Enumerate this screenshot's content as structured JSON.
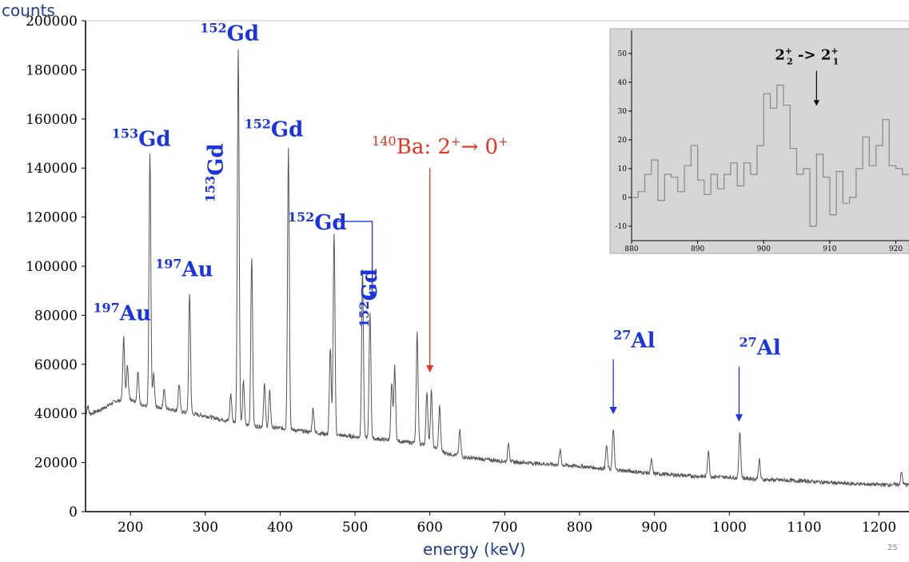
{
  "chart_data": [
    {
      "type": "line",
      "title": "",
      "ylabel": "counts",
      "xlabel": "energy (keV)",
      "xlim": [
        140,
        1240
      ],
      "ylim": [
        0,
        200000
      ],
      "x_ticks": [
        200,
        300,
        400,
        500,
        600,
        700,
        800,
        900,
        1000,
        1100,
        1200
      ],
      "y_ticks": [
        0,
        20000,
        40000,
        60000,
        80000,
        100000,
        120000,
        140000,
        160000,
        180000,
        200000
      ],
      "grid": false,
      "colors": {
        "spectrum": "#555555",
        "label_blue": "#1a35e0",
        "label_red": "#e8321e"
      },
      "continuum": [
        [
          140,
          39000
        ],
        [
          160,
          41500
        ],
        [
          180,
          45000
        ],
        [
          200,
          46000
        ],
        [
          220,
          43000
        ],
        [
          250,
          42000
        ],
        [
          280,
          40000
        ],
        [
          300,
          39000
        ],
        [
          330,
          37000
        ],
        [
          360,
          35000
        ],
        [
          400,
          34000
        ],
        [
          450,
          32000
        ],
        [
          500,
          30500
        ],
        [
          550,
          29000
        ],
        [
          580,
          28000
        ],
        [
          600,
          27000
        ],
        [
          620,
          24000
        ],
        [
          650,
          22000
        ],
        [
          700,
          20500
        ],
        [
          750,
          19500
        ],
        [
          800,
          18500
        ],
        [
          850,
          17000
        ],
        [
          900,
          15500
        ],
        [
          950,
          14500
        ],
        [
          1000,
          14000
        ],
        [
          1050,
          13000
        ],
        [
          1100,
          12500
        ],
        [
          1150,
          11500
        ],
        [
          1200,
          11000
        ],
        [
          1240,
          11000
        ]
      ],
      "peaks": [
        {
          "x": 143,
          "y": 43000
        },
        {
          "x": 191,
          "y": 71000
        },
        {
          "x": 196,
          "y": 60000
        },
        {
          "x": 210,
          "y": 57000
        },
        {
          "x": 226,
          "y": 146000
        },
        {
          "x": 231,
          "y": 56000
        },
        {
          "x": 245,
          "y": 50000
        },
        {
          "x": 265,
          "y": 52000
        },
        {
          "x": 279,
          "y": 89000
        },
        {
          "x": 334,
          "y": 48000
        },
        {
          "x": 344,
          "y": 188000
        },
        {
          "x": 351,
          "y": 53000
        },
        {
          "x": 362,
          "y": 104000
        },
        {
          "x": 379,
          "y": 52000
        },
        {
          "x": 386,
          "y": 49000
        },
        {
          "x": 411,
          "y": 148000
        },
        {
          "x": 444,
          "y": 42000
        },
        {
          "x": 467,
          "y": 67000
        },
        {
          "x": 472,
          "y": 114000
        },
        {
          "x": 510,
          "y": 99000
        },
        {
          "x": 520,
          "y": 81000
        },
        {
          "x": 549,
          "y": 52000
        },
        {
          "x": 553,
          "y": 59000
        },
        {
          "x": 583,
          "y": 73000
        },
        {
          "x": 596,
          "y": 49000
        },
        {
          "x": 602,
          "y": 49000
        },
        {
          "x": 613,
          "y": 43000
        },
        {
          "x": 640,
          "y": 33000
        },
        {
          "x": 705,
          "y": 28000
        },
        {
          "x": 774,
          "y": 25000
        },
        {
          "x": 836,
          "y": 27000
        },
        {
          "x": 845,
          "y": 34000
        },
        {
          "x": 896,
          "y": 21000
        },
        {
          "x": 972,
          "y": 25000
        },
        {
          "x": 1014,
          "y": 33000
        },
        {
          "x": 1040,
          "y": 21000
        },
        {
          "x": 1230,
          "y": 16000
        }
      ],
      "annotations": [
        {
          "iso": "197",
          "el": "Au",
          "x": 150,
          "y": 78000,
          "vertical": false,
          "color": "blue"
        },
        {
          "iso": "197",
          "el": "Au",
          "x": 233,
          "y": 96000,
          "vertical": false,
          "color": "blue"
        },
        {
          "iso": "153",
          "el": "Gd",
          "x": 175,
          "y": 149000,
          "vertical": false,
          "color": "blue"
        },
        {
          "iso": "152",
          "el": "Gd",
          "x": 293,
          "y": 192000,
          "vertical": false,
          "color": "blue"
        },
        {
          "iso": "153",
          "el": "Gd",
          "x": 323,
          "y": 126000,
          "vertical": true,
          "color": "blue"
        },
        {
          "iso": "152",
          "el": "Gd",
          "x": 352,
          "y": 153000,
          "vertical": false,
          "color": "blue"
        },
        {
          "iso": "152",
          "el": "Gd",
          "x": 410,
          "y": 115000,
          "vertical": false,
          "color": "blue",
          "arrow_to": {
            "x": 523,
            "y": 87000
          }
        },
        {
          "iso": "152",
          "el": "Gd",
          "x": 529,
          "y": 75000,
          "vertical": true,
          "color": "blue"
        },
        {
          "iso": "27",
          "el": "Al",
          "x": 845,
          "y": 67000,
          "vertical": false,
          "color": "blue",
          "arrow_to": {
            "x": 845,
            "y": 40000
          }
        },
        {
          "iso": "27",
          "el": "Al",
          "x": 1013,
          "y": 64000,
          "vertical": false,
          "color": "blue",
          "arrow_to": {
            "x": 1013,
            "y": 37000
          }
        }
      ],
      "main_label": {
        "iso": "140",
        "el": "Ba: 2",
        "sup1": "+",
        "mid": "→ 0",
        "sup2": "+",
        "x": 593,
        "y": 146000,
        "arrow_from": {
          "x": 600,
          "y": 140000
        },
        "arrow_to": {
          "x": 600,
          "y": 57000
        }
      }
    },
    {
      "type": "line",
      "title": "",
      "xlabel": "",
      "ylabel": "",
      "xlim": [
        880,
        922
      ],
      "ylim": [
        -15,
        58
      ],
      "x_ticks": [
        880,
        890,
        900,
        910,
        920
      ],
      "y_ticks": [
        -10,
        0,
        10,
        20,
        30,
        40,
        50
      ],
      "grid": false,
      "background": "#d6d6d6",
      "colors": {
        "line": "#888888"
      },
      "bin_width": 1,
      "x_start": 880,
      "values": [
        0,
        2,
        8,
        13,
        -1,
        8,
        7,
        2,
        11,
        18,
        6,
        1,
        8,
        3,
        8,
        12,
        4,
        12,
        8,
        18,
        36,
        31,
        39,
        32,
        17,
        8,
        10,
        -10,
        15,
        7,
        -6,
        9,
        -2,
        0,
        10,
        21,
        11,
        18,
        27,
        11,
        10,
        8,
        2,
        10,
        18,
        9,
        14,
        10,
        18,
        5,
        14,
        13,
        23,
        7,
        18
      ],
      "annotation": {
        "base": "2",
        "sup1": "+",
        "sub1": "2",
        "mid": " -> 2",
        "sup2": "+",
        "sub2": "1",
        "arrow_x": 908,
        "arrow_from_y": 44,
        "arrow_to_y": 32
      }
    }
  ],
  "footer": {
    "corner_text": "25"
  }
}
